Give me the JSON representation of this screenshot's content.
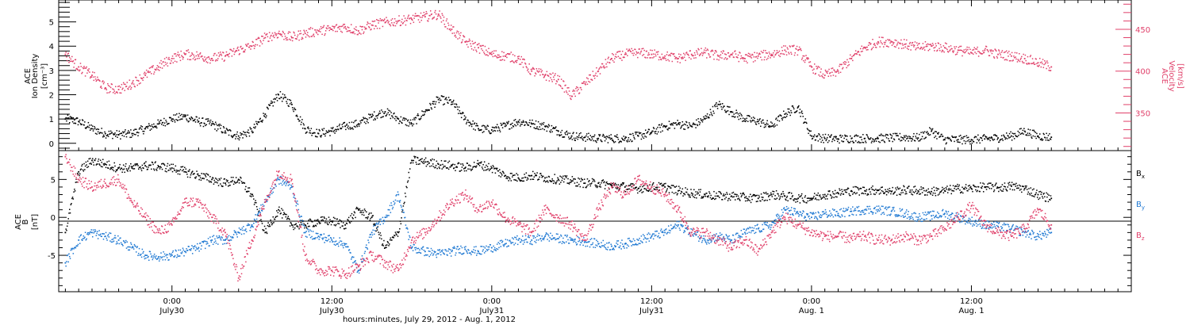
{
  "figure": {
    "xlabel": "hours:minutes, July 29, 2012 - Aug. 1, 2012",
    "x_ticks": [
      {
        "time": "0:00",
        "date": "July30"
      },
      {
        "time": "12:00",
        "date": "July30"
      },
      {
        "time": "0:00",
        "date": "July31"
      },
      {
        "time": "12:00",
        "date": "July31"
      },
      {
        "time": "0:00",
        "date": "Aug. 1"
      },
      {
        "time": "12:00",
        "date": "Aug. 1"
      }
    ]
  },
  "panel_top": {
    "left_label_lines": [
      "ACE",
      "Ion Density"
    ],
    "left_unit": "[cm⁻³]",
    "right_label_lines": [
      "ACE",
      "Velocity"
    ],
    "right_unit": "[km/s]",
    "left_ticks": [
      "0",
      "1",
      "2",
      "3",
      "4",
      "5"
    ],
    "right_ticks": [
      "350",
      "400",
      "450"
    ]
  },
  "panel_bottom": {
    "left_label_lines": [
      "ACE",
      "B"
    ],
    "left_unit": "[nT]",
    "y_ticks": [
      "-5",
      "0",
      "5"
    ],
    "legend": [
      {
        "main": "B",
        "sub": "x",
        "color": "#000000"
      },
      {
        "main": "B",
        "sub": "y",
        "color": "#1e78d2"
      },
      {
        "main": "B",
        "sub": "z",
        "color": "#e0406a"
      }
    ]
  },
  "colors": {
    "density": "#000000",
    "velocity": "#e0406a",
    "bx": "#000000",
    "by": "#1e78d2",
    "bz": "#e0406a",
    "axis": "#000000"
  },
  "chart_data": [
    {
      "type": "scatter",
      "x_unit": "hours since 2012-07-29 00:00",
      "xlim": [
        15.5,
        96
      ],
      "series": [
        {
          "name": "Ion Density",
          "axis": "left",
          "ylim": [
            -0.3,
            5.9
          ],
          "x": [
            16,
            17,
            18,
            19,
            20,
            21,
            22,
            23,
            24,
            25,
            26,
            27,
            28,
            29,
            30,
            31,
            32,
            33,
            34,
            35,
            36,
            37,
            38,
            39,
            40,
            41,
            42,
            43,
            44,
            45,
            46,
            47,
            48,
            49,
            50,
            51,
            52,
            53,
            54,
            55,
            56,
            57,
            58,
            59,
            60,
            61,
            62,
            63,
            64,
            65,
            66,
            67,
            68,
            69,
            70,
            71,
            72,
            73,
            74,
            75,
            76,
            77,
            78,
            79,
            80,
            81,
            82,
            83,
            84,
            85,
            86,
            87,
            88,
            89,
            90
          ],
          "y": [
            1.0,
            0.9,
            0.6,
            0.4,
            0.35,
            0.4,
            0.6,
            0.8,
            1.0,
            1.1,
            0.9,
            0.8,
            0.5,
            0.3,
            0.5,
            1.2,
            2.0,
            1.6,
            0.6,
            0.4,
            0.5,
            0.7,
            0.8,
            1.1,
            1.3,
            1.0,
            0.8,
            1.3,
            1.8,
            1.7,
            1.0,
            0.6,
            0.55,
            0.7,
            0.9,
            0.8,
            0.7,
            0.5,
            0.3,
            0.25,
            0.2,
            0.2,
            0.2,
            0.3,
            0.45,
            0.7,
            0.8,
            0.7,
            1.0,
            1.6,
            1.3,
            1.0,
            0.9,
            0.7,
            1.2,
            1.5,
            0.3,
            0.2,
            0.18,
            0.2,
            0.2,
            0.2,
            0.22,
            0.25,
            0.22,
            0.5,
            0.15,
            0.15,
            0.15,
            0.18,
            0.22,
            0.3,
            0.5,
            0.3,
            0.25
          ]
        },
        {
          "name": "Velocity",
          "axis": "right",
          "ylim": [
            305,
            485
          ],
          "x": [
            16,
            17,
            18,
            19,
            20,
            21,
            22,
            23,
            24,
            25,
            26,
            27,
            28,
            29,
            30,
            31,
            32,
            33,
            34,
            35,
            36,
            37,
            38,
            39,
            40,
            41,
            42,
            43,
            44,
            45,
            46,
            47,
            48,
            49,
            50,
            51,
            52,
            53,
            54,
            55,
            56,
            57,
            58,
            59,
            60,
            61,
            62,
            63,
            64,
            65,
            66,
            67,
            68,
            69,
            70,
            71,
            72,
            73,
            74,
            75,
            76,
            77,
            78,
            79,
            80,
            81,
            82,
            83,
            84,
            85,
            86,
            87,
            88,
            89,
            90
          ],
          "y": [
            420,
            405,
            395,
            380,
            378,
            385,
            395,
            405,
            415,
            420,
            418,
            415,
            418,
            425,
            430,
            440,
            445,
            440,
            445,
            448,
            450,
            453,
            448,
            455,
            458,
            460,
            462,
            465,
            468,
            450,
            435,
            428,
            420,
            418,
            415,
            400,
            395,
            390,
            370,
            385,
            400,
            415,
            420,
            422,
            420,
            418,
            415,
            420,
            422,
            418,
            420,
            415,
            418,
            420,
            425,
            425,
            405,
            395,
            400,
            415,
            428,
            435,
            435,
            432,
            428,
            430,
            428,
            425,
            422,
            425,
            420,
            418,
            415,
            410,
            405
          ]
        }
      ]
    },
    {
      "type": "scatter",
      "x_unit": "hours since 2012-07-29 00:00",
      "xlim": [
        15.5,
        96
      ],
      "ylim": [
        -9.8,
        8.8
      ],
      "series": [
        {
          "name": "Bx",
          "x": [
            16,
            17,
            18,
            19,
            20,
            21,
            22,
            23,
            24,
            25,
            26,
            27,
            28,
            29,
            30,
            31,
            32,
            33,
            34,
            35,
            36,
            37,
            38,
            39,
            40,
            41,
            42,
            43,
            44,
            45,
            46,
            47,
            48,
            49,
            50,
            51,
            52,
            53,
            54,
            55,
            56,
            57,
            58,
            59,
            60,
            61,
            62,
            63,
            64,
            65,
            66,
            67,
            68,
            69,
            70,
            71,
            72,
            73,
            74,
            75,
            76,
            77,
            78,
            79,
            80,
            81,
            82,
            83,
            84,
            85,
            86,
            87,
            88,
            89,
            90
          ],
          "y": [
            -2,
            6,
            7.5,
            7,
            6.5,
            6.5,
            6.8,
            6.7,
            6.5,
            6,
            5.5,
            5,
            4.5,
            5,
            3,
            -2,
            1,
            -1,
            -1,
            -0.5,
            -0.5,
            -1,
            1,
            0,
            -4,
            -2,
            7.5,
            7.3,
            7,
            6.8,
            6.5,
            7,
            6.5,
            5.5,
            5.2,
            5.5,
            5.2,
            5,
            4.8,
            4.5,
            4.5,
            4.2,
            4,
            3.8,
            4,
            4,
            3.5,
            3.2,
            3,
            2.8,
            2.8,
            2.6,
            2.5,
            3,
            2.8,
            2.5,
            2.5,
            3,
            3.2,
            3.5,
            3.5,
            3.6,
            3.4,
            3.6,
            3.5,
            3.4,
            3.5,
            3.8,
            3.8,
            4,
            3.9,
            4.1,
            3.8,
            3,
            2.5
          ]
        },
        {
          "name": "By",
          "x": [
            16,
            17,
            18,
            19,
            20,
            21,
            22,
            23,
            24,
            25,
            26,
            27,
            28,
            29,
            30,
            31,
            32,
            33,
            34,
            35,
            36,
            37,
            38,
            39,
            40,
            41,
            42,
            43,
            44,
            45,
            46,
            47,
            48,
            49,
            50,
            51,
            52,
            53,
            54,
            55,
            56,
            57,
            58,
            59,
            60,
            61,
            62,
            63,
            64,
            65,
            66,
            67,
            68,
            69,
            70,
            71,
            72,
            73,
            74,
            75,
            76,
            77,
            78,
            79,
            80,
            81,
            82,
            83,
            84,
            85,
            86,
            87,
            88,
            89,
            90
          ],
          "y": [
            -6,
            -3,
            -2,
            -2.5,
            -3,
            -4,
            -5,
            -5.2,
            -5,
            -4.5,
            -4,
            -3,
            -3,
            -2,
            -1,
            2,
            5,
            4,
            -2,
            -2.5,
            -3,
            -3.5,
            -7,
            -2,
            0,
            3,
            -4,
            -4.5,
            -4.8,
            -4.5,
            -4.2,
            -4.5,
            -4,
            -3.5,
            -3,
            -3,
            -2.5,
            -2.8,
            -3,
            -3.2,
            -3.5,
            -3.8,
            -3.5,
            -3,
            -2.5,
            -2,
            -1,
            -2,
            -3,
            -2.5,
            -3,
            -2,
            -1.5,
            -1,
            1,
            0.5,
            0,
            0.5,
            0.5,
            0.8,
            1,
            1,
            0.8,
            0.5,
            0,
            0.2,
            0.5,
            0,
            -0.5,
            -1,
            -1.2,
            -1.5,
            -2,
            -2.5,
            -2
          ]
        },
        {
          "name": "Bz",
          "x": [
            16,
            17,
            18,
            19,
            20,
            21,
            22,
            23,
            24,
            25,
            26,
            27,
            28,
            29,
            30,
            31,
            32,
            33,
            34,
            35,
            36,
            37,
            38,
            39,
            40,
            41,
            42,
            43,
            44,
            45,
            46,
            47,
            48,
            49,
            50,
            51,
            52,
            53,
            54,
            55,
            56,
            57,
            58,
            59,
            60,
            61,
            62,
            63,
            64,
            65,
            66,
            67,
            68,
            69,
            70,
            71,
            72,
            73,
            74,
            75,
            76,
            77,
            78,
            79,
            80,
            81,
            82,
            83,
            84,
            85,
            86,
            87,
            88,
            89,
            90
          ],
          "y": [
            8,
            5,
            4,
            4.5,
            5,
            2,
            0,
            -2,
            -1,
            2,
            2,
            0,
            -2,
            -8,
            -3,
            2,
            6,
            5,
            -5,
            -7,
            -7,
            -7.5,
            -6.5,
            -5,
            -6,
            -7,
            -3,
            -2,
            0,
            2,
            3,
            1,
            2,
            0,
            -1,
            -2,
            1,
            0,
            -1,
            -3,
            1,
            4,
            3,
            5,
            4,
            3,
            1,
            -2,
            -2,
            -3,
            -4,
            -3,
            -4.5,
            -2,
            0,
            -1,
            -2,
            -2.5,
            -2.5,
            -2.8,
            -2.5,
            -3,
            -3,
            -2.5,
            -3,
            -2.5,
            -1.5,
            0,
            1.5,
            -1,
            -2,
            -2.5,
            -1.5,
            1,
            -1
          ]
        }
      ]
    }
  ]
}
